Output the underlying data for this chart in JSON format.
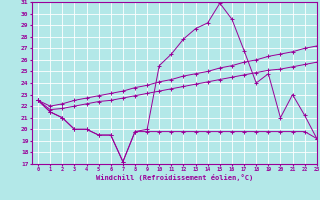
{
  "xlabel": "Windchill (Refroidissement éolien,°C)",
  "background_color": "#b3e8e8",
  "grid_color": "#ffffff",
  "line_color": "#990099",
  "xlim": [
    -0.5,
    23
  ],
  "ylim": [
    17,
    31
  ],
  "yticks": [
    17,
    18,
    19,
    20,
    21,
    22,
    23,
    24,
    25,
    26,
    27,
    28,
    29,
    30,
    31
  ],
  "xticks": [
    0,
    1,
    2,
    3,
    4,
    5,
    6,
    7,
    8,
    9,
    10,
    11,
    12,
    13,
    14,
    15,
    16,
    17,
    18,
    19,
    20,
    21,
    22,
    23
  ],
  "line1_x": [
    0,
    1,
    2,
    3,
    4,
    5,
    6,
    7,
    8,
    9,
    10,
    11,
    12,
    13,
    14,
    15,
    16,
    17,
    18,
    19,
    20,
    21,
    22,
    23
  ],
  "line1_y": [
    22.5,
    21.5,
    21.0,
    20.0,
    20.0,
    19.5,
    19.5,
    17.2,
    19.8,
    19.8,
    19.8,
    19.8,
    19.8,
    19.8,
    19.8,
    19.8,
    19.8,
    19.8,
    19.8,
    19.8,
    19.8,
    19.8,
    19.8,
    19.2
  ],
  "line2_x": [
    0,
    1,
    2,
    3,
    4,
    5,
    6,
    7,
    8,
    9,
    10,
    11,
    12,
    13,
    14,
    15,
    16,
    17,
    18,
    19,
    20,
    21,
    22,
    23
  ],
  "line2_y": [
    22.5,
    21.5,
    21.0,
    20.0,
    20.0,
    19.5,
    19.5,
    17.2,
    19.8,
    20.0,
    25.5,
    26.5,
    27.8,
    28.7,
    29.2,
    30.9,
    29.5,
    26.8,
    24.0,
    24.8,
    21.0,
    23.0,
    21.2,
    19.2
  ],
  "line3_x": [
    0,
    1,
    2,
    3,
    4,
    5,
    6,
    7,
    8,
    9,
    10,
    11,
    12,
    13,
    14,
    15,
    16,
    17,
    18,
    19,
    20,
    21,
    22,
    23
  ],
  "line3_y": [
    22.5,
    21.7,
    21.8,
    22.0,
    22.2,
    22.4,
    22.5,
    22.7,
    22.9,
    23.1,
    23.3,
    23.5,
    23.7,
    23.9,
    24.1,
    24.3,
    24.5,
    24.7,
    24.9,
    25.1,
    25.2,
    25.4,
    25.6,
    25.8
  ],
  "line4_x": [
    0,
    1,
    2,
    3,
    4,
    5,
    6,
    7,
    8,
    9,
    10,
    11,
    12,
    13,
    14,
    15,
    16,
    17,
    18,
    19,
    20,
    21,
    22,
    23
  ],
  "line4_y": [
    22.5,
    22.0,
    22.2,
    22.5,
    22.7,
    22.9,
    23.1,
    23.3,
    23.6,
    23.8,
    24.1,
    24.3,
    24.6,
    24.8,
    25.0,
    25.3,
    25.5,
    25.8,
    26.0,
    26.3,
    26.5,
    26.7,
    27.0,
    27.2
  ]
}
